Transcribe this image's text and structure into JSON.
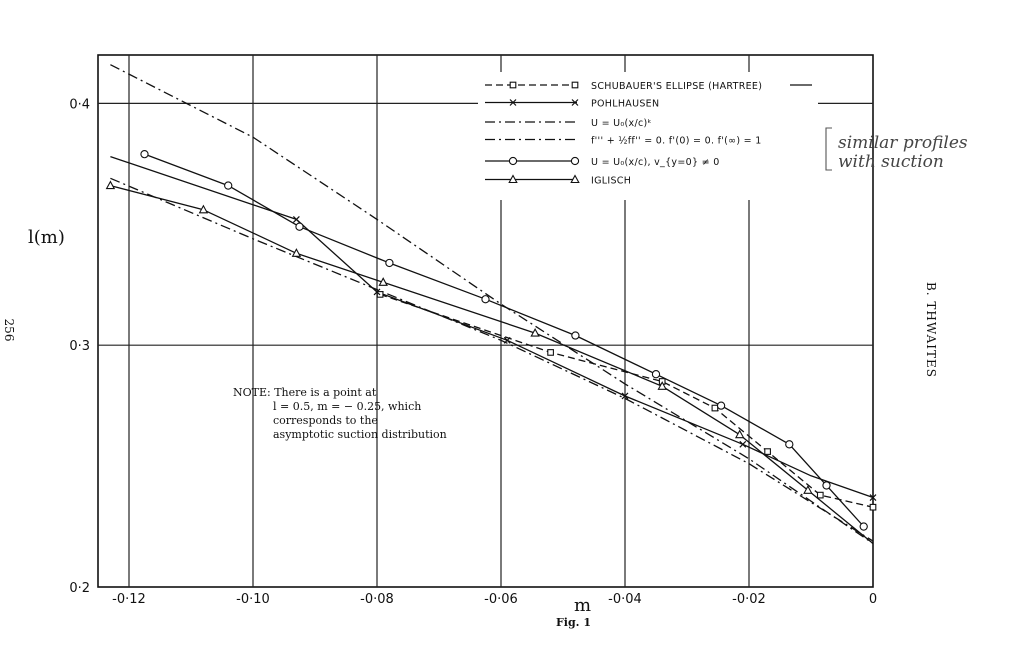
{
  "page": {
    "page_number": "256",
    "running_head": "B. THWAITES",
    "caption": "Fig. 1",
    "handwriting": [
      "similar profiles",
      "with suction"
    ]
  },
  "chart_data": {
    "type": "line",
    "title": "",
    "xlabel": "m",
    "ylabel": "l(m)",
    "xlim": [
      -0.125,
      0.0
    ],
    "ylim": [
      0.2,
      0.42
    ],
    "grid": true,
    "legend_position": "top-right",
    "xticks": [
      {
        "value": -0.12,
        "label": "-0·12"
      },
      {
        "value": -0.1,
        "label": "-0·10"
      },
      {
        "value": -0.08,
        "label": "-0·08"
      },
      {
        "value": -0.06,
        "label": "-0·06"
      },
      {
        "value": -0.04,
        "label": "-0·04"
      },
      {
        "value": -0.02,
        "label": "-0·02"
      },
      {
        "value": 0.0,
        "label": "0"
      }
    ],
    "yticks": [
      {
        "value": 0.4,
        "label": "0·4"
      },
      {
        "value": 0.3,
        "label": "0·3"
      },
      {
        "value": 0.2,
        "label": "0·2"
      }
    ],
    "note": [
      "NOTE: There is a point at",
      "l = 0.5, m = − 0.25, which",
      "corresponds to the",
      "asymptotic suction distribution"
    ],
    "series": [
      {
        "name": "SCHUBAUER'S ELLIPSE (HARTREE)",
        "style": "dashed",
        "marker": "square",
        "x": [
          -0.0795,
          -0.052,
          -0.034,
          -0.0255,
          -0.017,
          -0.0085,
          0.0
        ],
        "y": [
          0.321,
          0.297,
          0.285,
          0.274,
          0.256,
          0.238,
          0.233
        ],
        "markers_at": [
          -0.0795,
          -0.052,
          -0.034,
          -0.0255,
          -0.017,
          -0.0085,
          0.0
        ]
      },
      {
        "name": "POHLHAUSEN",
        "style": "solid",
        "marker": "x",
        "x": [
          -0.123,
          -0.093,
          -0.08,
          -0.059,
          -0.04,
          -0.021,
          -0.01,
          0.0
        ],
        "y": [
          0.378,
          0.352,
          0.322,
          0.302,
          0.279,
          0.259,
          0.246,
          0.237
        ],
        "markers_at": [
          -0.093,
          -0.08,
          -0.059,
          -0.04,
          -0.021,
          0.0
        ]
      },
      {
        "name": "U = U₀(x/c)ᵏ",
        "style": "dashdot",
        "marker": "none",
        "x": [
          -0.123,
          -0.1,
          -0.08,
          -0.06,
          -0.04,
          -0.02,
          0.0
        ],
        "y": [
          0.416,
          0.386,
          0.352,
          0.317,
          0.284,
          0.253,
          0.218
        ],
        "markers_at": []
      },
      {
        "name": "f''' + ½ff'' = 0.   f'(0) = 0.   f'(∞) = 1",
        "style": "dashdot",
        "marker": "none",
        "x": [
          -0.123,
          -0.1,
          -0.08,
          -0.06,
          -0.04,
          -0.02,
          0.0
        ],
        "y": [
          0.369,
          0.344,
          0.323,
          0.302,
          0.278,
          0.251,
          0.219
        ],
        "markers_at": []
      },
      {
        "name": "U = U₀(x/c), v_{y=0} ≠ 0",
        "style": "solid",
        "marker": "circle",
        "x": [
          -0.1175,
          -0.104,
          -0.0925,
          -0.078,
          -0.0625,
          -0.048,
          -0.035,
          -0.0245,
          -0.0135,
          -0.0075,
          -0.0015
        ],
        "y": [
          0.379,
          0.366,
          0.349,
          0.334,
          0.319,
          0.304,
          0.288,
          0.275,
          0.259,
          0.242,
          0.225
        ],
        "markers_at": [
          -0.1175,
          -0.104,
          -0.0925,
          -0.078,
          -0.0625,
          -0.048,
          -0.035,
          -0.0245,
          -0.0135,
          -0.0075,
          -0.0015
        ]
      },
      {
        "name": "IGLISCH",
        "style": "solid",
        "marker": "triangle",
        "x": [
          -0.123,
          -0.108,
          -0.093,
          -0.079,
          -0.0545,
          -0.034,
          -0.0215,
          -0.0105,
          0.0
        ],
        "y": [
          0.366,
          0.356,
          0.338,
          0.326,
          0.305,
          0.283,
          0.263,
          0.24,
          0.218
        ],
        "markers_at": [
          -0.123,
          -0.108,
          -0.093,
          -0.079,
          -0.0545,
          -0.034,
          -0.0215,
          -0.0105
        ]
      }
    ]
  }
}
